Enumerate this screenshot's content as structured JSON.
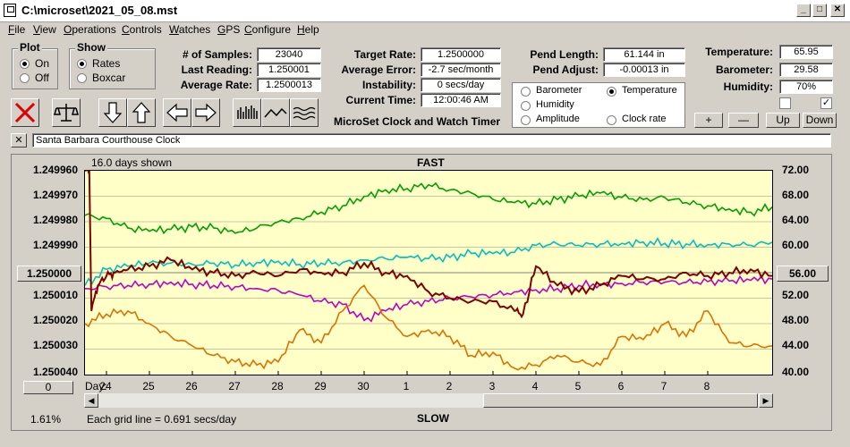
{
  "window": {
    "title": "C:\\microset\\2021_05_08.mst"
  },
  "menu": [
    "File",
    "View",
    "Operations",
    "Controls",
    "Watches",
    "GPS",
    "Configure",
    "Help"
  ],
  "plot_group": {
    "label": "Plot",
    "on": "On",
    "off": "Off",
    "selected": "On"
  },
  "show_group": {
    "label": "Show",
    "rates": "Rates",
    "boxcar": "Boxcar",
    "selected": "Rates"
  },
  "stats": {
    "samples_label": "# of Samples:",
    "samples": "23040",
    "last_label": "Last Reading:",
    "last": "1.250001",
    "avg_label": "Average Rate:",
    "avg": "1.2500013",
    "target_label": "Target Rate:",
    "target": "1.2500000",
    "avgerr_label": "Average Error:",
    "avgerr": "-2.7 sec/month",
    "instab_label": "Instability:",
    "instab": "0 secs/day",
    "time_label": "Current Time:",
    "time": "12:00:46 AM",
    "pendlen_label": "Pend Length:",
    "pendlen": "61.144 in",
    "pendadj_label": "Pend Adjust:",
    "pendadj": "-0.00013 in",
    "temp_label": "Temperature:",
    "temp": "65.95",
    "baro_label": "Barometer:",
    "baro": "29.58",
    "hum_label": "Humidity:",
    "hum": "70%"
  },
  "app_caption": "MicroSet Clock and Watch Timer",
  "selector": {
    "barometer": "Barometer",
    "temperature": "Temperature",
    "humidity": "Humidity",
    "amplitude": "Amplitude",
    "clockrate": "Clock rate",
    "selected": "Temperature",
    "colors": {
      "barometer": "#e07000",
      "temperature": "#00a000",
      "humidity": "#c000c0",
      "amplitude": "#00c0c0",
      "clockrate": "#800000"
    }
  },
  "checks": {
    "left": false,
    "right": true
  },
  "adj_buttons": {
    "plus": "+",
    "minus": "—",
    "up": "Up",
    "down": "Down"
  },
  "clock_name": "Santa Barbara Courthouse Clock",
  "chart": {
    "days_shown": "16.0 days shown",
    "top_label": "FAST",
    "bottom_label": "SLOW",
    "left_button": "1.250000",
    "right_button": "56.00",
    "zero_button": "0",
    "percent": "1.61%",
    "grid_note": "Each grid line = 0.691 secs/day",
    "day_label": "Day:"
  },
  "chart_data": {
    "type": "line",
    "y_left_ticks": [
      "1.249960",
      "1.249970",
      "1.249980",
      "1.249990",
      "1.250000",
      "1.250010",
      "1.250020",
      "1.250030",
      "1.250040"
    ],
    "y_right_ticks": [
      "72.00",
      "68.00",
      "64.00",
      "60.00",
      "56.00",
      "52.00",
      "48.00",
      "44.00",
      "40.00"
    ],
    "x_ticks": [
      "24",
      "25",
      "26",
      "27",
      "28",
      "29",
      "30",
      "1",
      "2",
      "3",
      "4",
      "5",
      "6",
      "7",
      "8"
    ],
    "x_range": [
      0,
      16
    ],
    "y_range_right": [
      40,
      72
    ],
    "series": [
      {
        "color": "#00a000",
        "x": [
          0,
          0.5,
          1,
          1.5,
          2,
          2.5,
          3,
          3.5,
          4,
          4.5,
          5,
          5.5,
          6,
          6.5,
          7,
          7.5,
          8,
          8.5,
          9,
          9.5,
          10,
          10.5,
          11,
          11.5,
          12,
          12.5,
          13,
          13.5,
          14,
          14.5,
          15,
          15.5,
          16
        ],
        "y": [
          65,
          64.5,
          63,
          62.5,
          62.8,
          63.2,
          63,
          62.2,
          63,
          64,
          64.5,
          65.5,
          66.5,
          68,
          69,
          69.2,
          69.8,
          69,
          68.5,
          67.5,
          67,
          66.8,
          67.5,
          68,
          68.5,
          67.8,
          67.5,
          67.8,
          67,
          66.5,
          66,
          65.5,
          66.3
        ]
      },
      {
        "color": "#00c0c0",
        "x": [
          0,
          0.5,
          1,
          1.5,
          2,
          2.5,
          3,
          3.5,
          4,
          4.5,
          5,
          5.5,
          6,
          6.5,
          7,
          7.5,
          8,
          8.5,
          9,
          9.5,
          10,
          10.5,
          11,
          11.5,
          12,
          12.5,
          13,
          13.5,
          14,
          14.5,
          15,
          15.5,
          16
        ],
        "y": [
          54,
          56.5,
          57,
          57.5,
          57.5,
          57.3,
          57.5,
          57.2,
          57.6,
          57.8,
          57.3,
          57.5,
          57.6,
          58,
          58.2,
          58.4,
          58.2,
          58.4,
          59,
          59,
          59.2,
          60.3,
          60.5,
          60.3,
          60.5,
          60.6,
          60.8,
          60.6,
          60.5,
          60.4,
          60.5,
          60.3,
          60.8
        ]
      },
      {
        "color": "#c000c0",
        "x": [
          0,
          0.5,
          1,
          1.5,
          2,
          2.5,
          3,
          3.5,
          4,
          4.5,
          5,
          5.5,
          6,
          6.5,
          7,
          7.5,
          8,
          8.5,
          9,
          9.5,
          10,
          10.5,
          11,
          11.5,
          12,
          12.5,
          13,
          13.5,
          14,
          14.5,
          15,
          15.5,
          16
        ],
        "y": [
          53.5,
          53.8,
          54,
          54.2,
          54.5,
          54.2,
          54,
          53.8,
          53.5,
          53.2,
          52.5,
          51.5,
          51,
          48.5,
          50,
          51,
          51.5,
          52,
          52.2,
          52.5,
          53,
          53.3,
          53.5,
          54,
          54.2,
          54.3,
          54.5,
          54.5,
          54.5,
          54.6,
          54.7,
          54.8,
          55
        ]
      },
      {
        "color": "#e07000",
        "x": [
          0,
          0.5,
          1,
          1.5,
          2,
          2.5,
          3,
          3.5,
          4,
          4.5,
          5,
          5.5,
          6,
          6.5,
          7,
          7.5,
          8,
          8.5,
          9,
          9.5,
          10,
          10.5,
          11,
          11.5,
          12,
          12.5,
          13,
          13.5,
          14,
          14.5,
          15,
          15.5,
          16
        ],
        "y": [
          48,
          49.5,
          50,
          48,
          46,
          44.5,
          43,
          42,
          41.5,
          42,
          47,
          45,
          50,
          54,
          49,
          46,
          47,
          46,
          43,
          43.5,
          41,
          41.5,
          43,
          42,
          41.5,
          46,
          45.5,
          48,
          46,
          50,
          45,
          44.5,
          44.5
        ]
      },
      {
        "color": "#800000",
        "x": [
          0,
          0.1,
          0.15,
          0.3,
          0.5,
          0.7,
          1,
          1.5,
          2,
          2.5,
          3,
          3.5,
          4,
          4.5,
          5,
          5.5,
          6,
          6.5,
          7,
          7.5,
          8,
          8.5,
          9,
          9.5,
          10,
          10.2,
          10.5,
          11,
          11.5,
          12,
          12.5,
          13,
          13.5,
          14,
          14.5,
          15,
          15.5,
          16
        ],
        "y": [
          72,
          72,
          50,
          54,
          55.5,
          56,
          56.5,
          57,
          58,
          56.5,
          56,
          55.5,
          56,
          55.5,
          56.5,
          56,
          56,
          57.5,
          56,
          55.5,
          53,
          52,
          51.5,
          51.5,
          50,
          49.5,
          57,
          54,
          53,
          54,
          55.5,
          55,
          55,
          56,
          55.5,
          56,
          56.5,
          55.5
        ]
      }
    ]
  }
}
